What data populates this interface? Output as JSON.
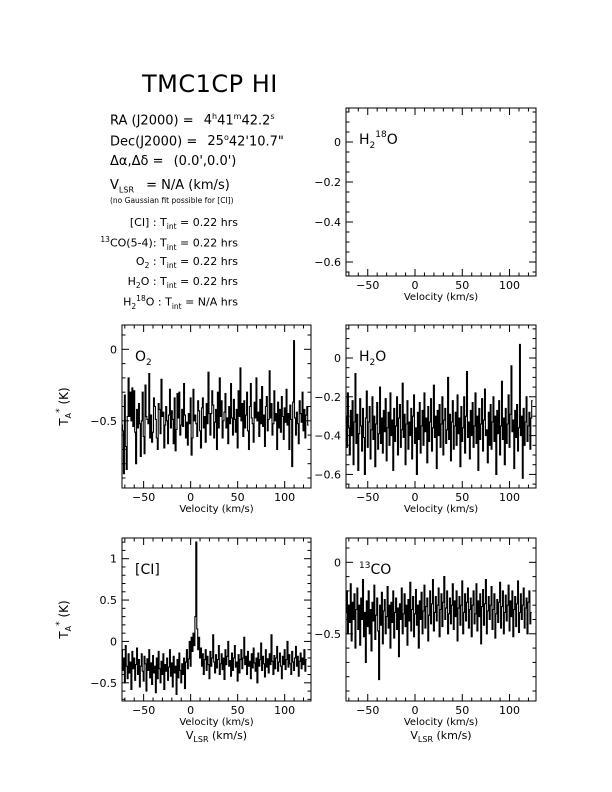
{
  "header": {
    "title": "TMC1CP HI",
    "ra": {
      "label": "RA (J2000) =",
      "h": "4",
      "hu": "h",
      "m": "41",
      "mu": "m",
      "s": "42.2",
      "su": "s"
    },
    "dec": {
      "label": "Dec(J2000) =",
      "deg": "25",
      "degu": "o",
      "rest": "42'10.7\""
    },
    "offset": {
      "label": "Δα,Δδ =",
      "value": "(0.0',0.0')"
    },
    "vlsr": {
      "prefix": "V",
      "sub": "LSR",
      "value": "= N/A  (km/s)"
    },
    "note": "(no Gaussian fit possible for [CI])",
    "integrations": [
      {
        "pre": "",
        "sup": "",
        "name": "[CI] :",
        "sub": "",
        "label": "T",
        "lsub": "int",
        "value": "= 0.22 hrs"
      },
      {
        "pre": "13",
        "sup": "",
        "name": "CO(5-4):",
        "sub": "",
        "label": "T",
        "lsub": "int",
        "value": "= 0.22 hrs"
      },
      {
        "pre": "",
        "sup": "",
        "name": "O",
        "sub": "2",
        "after": " :",
        "label": "T",
        "lsub": "int",
        "value": "= 0.22 hrs"
      },
      {
        "pre": "",
        "sup": "",
        "name": "H",
        "sub": "2",
        "after": "O :",
        "label": "T",
        "lsub": "int",
        "value": "= 0.22 hrs"
      },
      {
        "pre": "",
        "sup": "18",
        "name": "H",
        "sub": "2",
        "after": "O :",
        "label": "T",
        "lsub": "int",
        "value": "= N/A  hrs",
        "iso": true
      }
    ]
  },
  "common": {
    "xlabel": "Velocity (km/s)",
    "xlabel2": {
      "prefix": "V",
      "sub": "LSR",
      "suffix": " (km/s)"
    },
    "ylabel": {
      "prefix": "T",
      "sub": "A",
      "sup": "*",
      "suffix": " (K)"
    }
  },
  "chart_data": [
    {
      "type": "line",
      "id": "h218o",
      "label": {
        "main": "H",
        "sub": "2",
        "sup": "18",
        "rest": "O"
      },
      "xlim": [
        -73,
        128
      ],
      "ylim": [
        -0.67,
        0.17
      ],
      "xticks": [
        -50,
        0,
        50,
        100
      ],
      "yticks": [
        0,
        -0.2,
        -0.4,
        -0.6
      ],
      "yticklabels": [
        "0",
        "−0.2",
        "−0.4",
        "−0.6"
      ],
      "series": []
    },
    {
      "type": "line",
      "id": "o2",
      "label": {
        "main": "O",
        "sub": "2"
      },
      "xlim": [
        -73,
        128
      ],
      "ylim": [
        -0.97,
        0.17
      ],
      "xticks": [
        -50,
        0,
        50,
        100
      ],
      "yticks": [
        0,
        -0.5
      ],
      "yticklabels": [
        "0",
        "−0.5"
      ],
      "series": [
        {
          "x_start": -73,
          "x_step": 1.0,
          "y": [
            -0.53,
            -0.57,
            -0.87,
            -0.32,
            -0.68,
            -0.84,
            -0.47,
            -0.2,
            -0.47,
            -0.3,
            -0.5,
            -0.27,
            -0.54,
            -0.29,
            -0.58,
            -0.8,
            -0.42,
            -0.55,
            -0.38,
            -0.52,
            -0.75,
            -0.5,
            -0.3,
            -0.61,
            -0.73,
            -0.25,
            -0.47,
            -0.49,
            -0.52,
            -0.17,
            -0.62,
            -0.46,
            -0.65,
            -0.58,
            -0.34,
            -0.4,
            -0.49,
            -0.62,
            -0.7,
            -0.38,
            -0.42,
            -0.59,
            -0.21,
            -0.47,
            -0.44,
            -0.69,
            -0.53,
            -0.4,
            -0.5,
            -0.66,
            -0.46,
            -0.28,
            -0.55,
            -0.43,
            -0.49,
            -0.66,
            -0.34,
            -0.71,
            -0.56,
            -0.31,
            -0.48,
            -0.3,
            -0.6,
            -0.53,
            -0.42,
            -0.54,
            -0.24,
            -0.46,
            -0.62,
            -0.51,
            -0.67,
            -0.45,
            -0.52,
            -0.34,
            -0.74,
            -0.62,
            -0.28,
            -0.5,
            -0.46,
            -0.52,
            -0.61,
            -0.36,
            -0.43,
            -0.57,
            -0.69,
            -0.41,
            -0.34,
            -0.55,
            -0.47,
            -0.65,
            -0.38,
            -0.52,
            -0.16,
            -0.45,
            -0.6,
            -0.45,
            -0.29,
            -0.39,
            -0.62,
            -0.51,
            -0.42,
            -0.7,
            -0.3,
            -0.55,
            -0.2,
            -0.47,
            -0.36,
            -0.62,
            -0.5,
            -0.44,
            -0.31,
            -0.55,
            -0.48,
            -0.66,
            -0.4,
            -0.52,
            -0.24,
            -0.48,
            -0.6,
            -0.35,
            -0.49,
            -0.58,
            -0.42,
            -0.69,
            -0.29,
            -0.47,
            -0.13,
            -0.5,
            -0.38,
            -0.61,
            -0.36,
            -0.55,
            -0.46,
            -0.3,
            -0.57,
            -0.7,
            -0.4,
            -0.24,
            -0.48,
            -0.52,
            -0.65,
            -0.37,
            -0.48,
            -0.2,
            -0.5,
            -0.44,
            -0.61,
            -0.35,
            -0.52,
            -0.26,
            -0.54,
            -0.46,
            -0.68,
            -0.4,
            -0.33,
            -0.57,
            -0.49,
            -0.15,
            -0.48,
            -0.38,
            -0.6,
            -0.52,
            -0.29,
            -0.5,
            -0.45,
            -0.7,
            -0.37,
            -0.55,
            -0.42,
            -0.58,
            -0.33,
            -0.47,
            -0.63,
            -0.41,
            -0.51,
            -0.28,
            -0.53,
            -0.45,
            -0.7,
            -0.39,
            -0.49,
            -0.82,
            -0.37,
            0.06,
            -0.48,
            -0.6,
            -0.44,
            -0.52,
            -0.66,
            -0.36,
            -0.45,
            -0.51,
            -0.3,
            -0.57,
            -0.42,
            -0.62,
            -0.46,
            -0.4,
            -0.53
          ]
        }
      ]
    },
    {
      "type": "line",
      "id": "h2o",
      "label": {
        "main": "H",
        "sub": "2",
        "rest": "O"
      },
      "xlim": [
        -73,
        128
      ],
      "ylim": [
        -0.67,
        0.17
      ],
      "xticks": [
        -50,
        0,
        50,
        100
      ],
      "yticks": [
        0,
        -0.2,
        -0.4,
        -0.6
      ],
      "yticklabels": [
        "0",
        "−0.2",
        "−0.4",
        "−0.6"
      ],
      "series": [
        {
          "x_start": -73,
          "x_step": 1.0,
          "y": [
            -0.3,
            -0.46,
            -0.18,
            -0.36,
            -0.5,
            -0.27,
            -0.4,
            -0.22,
            -0.55,
            -0.33,
            -0.08,
            -0.44,
            -0.29,
            -0.58,
            -0.39,
            -0.21,
            -0.35,
            -0.48,
            -0.26,
            -0.41,
            -0.6,
            -0.31,
            -0.17,
            -0.46,
            -0.33,
            -0.25,
            -0.52,
            -0.37,
            -0.2,
            -0.42,
            -0.3,
            -0.56,
            -0.34,
            -0.23,
            -0.47,
            -0.39,
            -0.15,
            -0.44,
            -0.31,
            -0.49,
            -0.27,
            -0.38,
            -0.21,
            -0.53,
            -0.36,
            -0.28,
            -0.45,
            -0.18,
            -0.4,
            -0.32,
            -0.58,
            -0.26,
            -0.43,
            -0.35,
            -0.2,
            -0.5,
            -0.31,
            -0.24,
            -0.46,
            -0.37,
            -0.13,
            -0.41,
            -0.29,
            -0.55,
            -0.34,
            -0.22,
            -0.47,
            -0.33,
            -0.4,
            -0.26,
            -0.52,
            -0.3,
            -0.19,
            -0.44,
            -0.36,
            -0.6,
            -0.28,
            -0.42,
            -0.23,
            -0.49,
            -0.35,
            -0.27,
            -0.45,
            -0.18,
            -0.38,
            -0.31,
            -0.54,
            -0.25,
            -0.43,
            -0.33,
            -0.21,
            -0.48,
            -0.36,
            -0.14,
            -0.41,
            -0.3,
            -0.57,
            -0.27,
            -0.4,
            -0.24,
            -0.46,
            -0.34,
            -0.2,
            -0.5,
            -0.32,
            -0.26,
            -0.44,
            -0.37,
            -0.1,
            -0.42,
            -0.29,
            -0.53,
            -0.33,
            -0.22,
            -0.47,
            -0.35,
            -0.28,
            -0.45,
            -0.19,
            -0.39,
            -0.31,
            -0.56,
            -0.25,
            -0.43,
            -0.36,
            -0.2,
            -0.49,
            -0.3,
            -0.07,
            -0.41,
            -0.33,
            -0.52,
            -0.27,
            -0.4,
            -0.23,
            -0.46,
            -0.35,
            -0.18,
            -0.44,
            -0.3,
            -0.58,
            -0.26,
            -0.42,
            -0.34,
            -0.21,
            -0.48,
            -0.32,
            -0.16,
            -0.4,
            -0.37,
            -0.54,
            -0.28,
            -0.45,
            -0.24,
            -0.47,
            -0.33,
            -0.2,
            -0.43,
            -0.3,
            -0.6,
            -0.27,
            -0.39,
            -0.22,
            -0.5,
            -0.35,
            -0.12,
            -0.42,
            -0.31,
            -0.55,
            -0.26,
            -0.44,
            -0.34,
            -0.19,
            -0.46,
            -0.29,
            -0.04,
            -0.38,
            -0.32,
            -0.57,
            -0.27,
            -0.41,
            -0.24,
            -0.48,
            -0.36,
            0.07,
            -0.4,
            -0.3,
            -0.62,
            -0.26,
            -0.45,
            -0.33,
            -0.2,
            -0.43,
            -0.35,
            -0.28,
            -0.47,
            -0.31,
            -0.22
          ]
        }
      ]
    },
    {
      "type": "line",
      "id": "ci",
      "label": {
        "main": "[CI]"
      },
      "xlim": [
        -73,
        128
      ],
      "ylim": [
        -0.72,
        1.25
      ],
      "xticks": [
        -50,
        0,
        50,
        100
      ],
      "yticks": [
        1,
        0.5,
        0,
        -0.5
      ],
      "yticklabels": [
        "1",
        "0.5",
        "0",
        "−0.5"
      ],
      "series": [
        {
          "x_start": -73,
          "x_step": 1.0,
          "y": [
            -0.1,
            -0.35,
            -0.2,
            -0.5,
            -0.05,
            -0.3,
            -0.45,
            -0.15,
            -0.38,
            -0.25,
            -0.58,
            -0.12,
            -0.33,
            -0.2,
            -0.47,
            -0.28,
            -0.08,
            -0.4,
            -0.22,
            -0.55,
            -0.3,
            -0.15,
            -0.36,
            -0.48,
            -0.18,
            -0.27,
            -0.6,
            -0.21,
            -0.35,
            -0.1,
            -0.44,
            -0.26,
            -0.52,
            -0.17,
            -0.38,
            -0.3,
            -0.62,
            -0.2,
            -0.45,
            -0.12,
            -0.33,
            -0.5,
            -0.24,
            -0.4,
            -0.15,
            -0.58,
            -0.28,
            -0.36,
            -0.2,
            -0.47,
            -0.31,
            -0.1,
            -0.42,
            -0.26,
            -0.55,
            -0.18,
            -0.38,
            -0.3,
            -0.64,
            -0.22,
            -0.44,
            -0.14,
            -0.35,
            -0.5,
            -0.27,
            -0.4,
            -0.2,
            -0.57,
            -0.25,
            -0.1,
            -0.33,
            -0.21,
            0.0,
            -0.3,
            0.05,
            -0.12,
            0.1,
            -0.05,
            0.3,
            1.2,
            0.15,
            -0.1,
            0.05,
            -0.2,
            -0.08,
            -0.3,
            -0.15,
            -0.4,
            -0.22,
            -0.1,
            -0.35,
            -0.18,
            -0.28,
            -0.45,
            -0.12,
            -0.3,
            -0.2,
            0.08,
            -0.25,
            -0.38,
            -0.16,
            -0.32,
            -0.22,
            -0.05,
            -0.4,
            -0.27,
            -0.15,
            -0.34,
            -0.2,
            -0.46,
            -0.1,
            -0.28,
            -0.18,
            0.0,
            -0.3,
            -0.23,
            -0.42,
            -0.14,
            -0.35,
            -0.2,
            -0.05,
            -0.31,
            -0.25,
            -0.48,
            -0.16,
            -0.38,
            -0.22,
            -0.1,
            -0.33,
            -0.2,
            0.05,
            -0.28,
            -0.18,
            -0.4,
            -0.12,
            -0.3,
            -0.24,
            -0.45,
            -0.15,
            -0.32,
            -0.08,
            -0.26,
            -0.36,
            -0.2,
            -0.5,
            -0.14,
            -0.3,
            -0.22,
            -0.02,
            -0.35,
            -0.18,
            -0.27,
            -0.43,
            -0.1,
            -0.31,
            -0.21,
            -0.38,
            -0.15,
            -0.28,
            0.08,
            -0.24,
            -0.4,
            -0.17,
            -0.33,
            -0.2,
            -0.06,
            -0.36,
            -0.25,
            -0.14,
            -0.3,
            -0.45,
            -0.18,
            -0.28,
            -0.1,
            -0.34,
            -0.22,
            0.0,
            -0.31,
            -0.16,
            -0.27,
            -0.4,
            -0.12,
            -0.25,
            -0.35,
            -0.2,
            -0.06,
            -0.3,
            -0.18,
            -0.42,
            -0.24,
            -0.14,
            -0.33,
            -0.2,
            -0.28,
            -0.1,
            -0.36,
            -0.22
          ]
        }
      ]
    },
    {
      "type": "line",
      "id": "13co",
      "label": {
        "pre": "13",
        "main": "CO"
      },
      "xlim": [
        -73,
        128
      ],
      "ylim": [
        -0.97,
        0.17
      ],
      "xticks": [
        -50,
        0,
        50,
        100
      ],
      "yticks": [
        0,
        -0.5
      ],
      "yticklabels": [
        "0",
        "−0.5"
      ],
      "series": [
        {
          "x_start": -73,
          "x_step": 1.0,
          "y": [
            -0.35,
            -0.2,
            -0.5,
            -0.3,
            -0.42,
            -0.15,
            -0.55,
            -0.28,
            -0.4,
            -0.22,
            -0.6,
            -0.33,
            -0.18,
            -0.47,
            -0.3,
            -0.58,
            -0.25,
            -0.4,
            -0.12,
            -0.52,
            -0.35,
            -0.7,
            -0.27,
            -0.45,
            -0.2,
            -0.5,
            -0.33,
            -0.62,
            -0.28,
            -0.41,
            -0.16,
            -0.54,
            -0.37,
            -0.25,
            -0.48,
            -0.82,
            -0.3,
            -0.44,
            -0.21,
            -0.57,
            -0.34,
            -0.26,
            -0.5,
            -0.38,
            -0.17,
            -0.46,
            -0.3,
            -0.6,
            -0.28,
            -0.42,
            -0.2,
            -0.53,
            -0.35,
            -0.25,
            -0.47,
            -0.32,
            -0.66,
            -0.29,
            -0.4,
            -0.18,
            -0.5,
            -0.36,
            -0.22,
            -0.45,
            -0.3,
            -0.58,
            -0.26,
            -0.41,
            -0.14,
            -0.48,
            -0.33,
            -0.24,
            -0.52,
            -0.36,
            -0.19,
            -0.44,
            -0.3,
            -0.6,
            -0.27,
            -0.4,
            -0.21,
            -0.5,
            -0.34,
            -0.16,
            -0.46,
            -0.31,
            -0.25,
            -0.55,
            -0.37,
            -0.2,
            -0.43,
            -0.29,
            -0.12,
            -0.48,
            -0.35,
            -0.24,
            -0.41,
            -0.3,
            -0.18,
            -0.52,
            -0.33,
            -0.22,
            -0.45,
            -0.28,
            -0.1,
            -0.4,
            -0.32,
            -0.2,
            -0.5,
            -0.36,
            -0.25,
            -0.43,
            -0.3,
            -0.15,
            -0.47,
            -0.27,
            -0.38,
            -0.2,
            -0.55,
            -0.32,
            -0.24,
            -0.44,
            -0.3,
            -0.13,
            -0.5,
            -0.35,
            -0.22,
            -0.41,
            -0.28,
            -0.18,
            -0.46,
            -0.33,
            -0.25,
            -0.52,
            -0.3,
            -0.2,
            -0.43,
            -0.36,
            -0.15,
            -0.48,
            -0.27,
            -0.38,
            -0.22,
            -0.57,
            -0.31,
            -0.19,
            -0.44,
            -0.29,
            -0.12,
            -0.5,
            -0.34,
            -0.24,
            -0.4,
            -0.3,
            -0.17,
            -0.47,
            -0.33,
            -0.22,
            -0.53,
            -0.36,
            -0.26,
            -0.42,
            -0.28,
            -0.14,
            -0.46,
            -0.31,
            -0.2,
            -0.5,
            -0.35,
            -0.23,
            -0.41,
            -0.3,
            -0.16,
            -0.48,
            -0.27,
            -0.38,
            -0.2,
            -0.52,
            -0.33,
            -0.24,
            -0.45,
            -0.29,
            -0.13,
            -0.49,
            -0.35,
            -0.22,
            -0.4,
            -0.3,
            -0.18,
            -0.46,
            -0.32,
            -0.25,
            -0.5,
            -0.28,
            -0.2,
            -0.43,
            -0.35
          ]
        }
      ]
    }
  ]
}
